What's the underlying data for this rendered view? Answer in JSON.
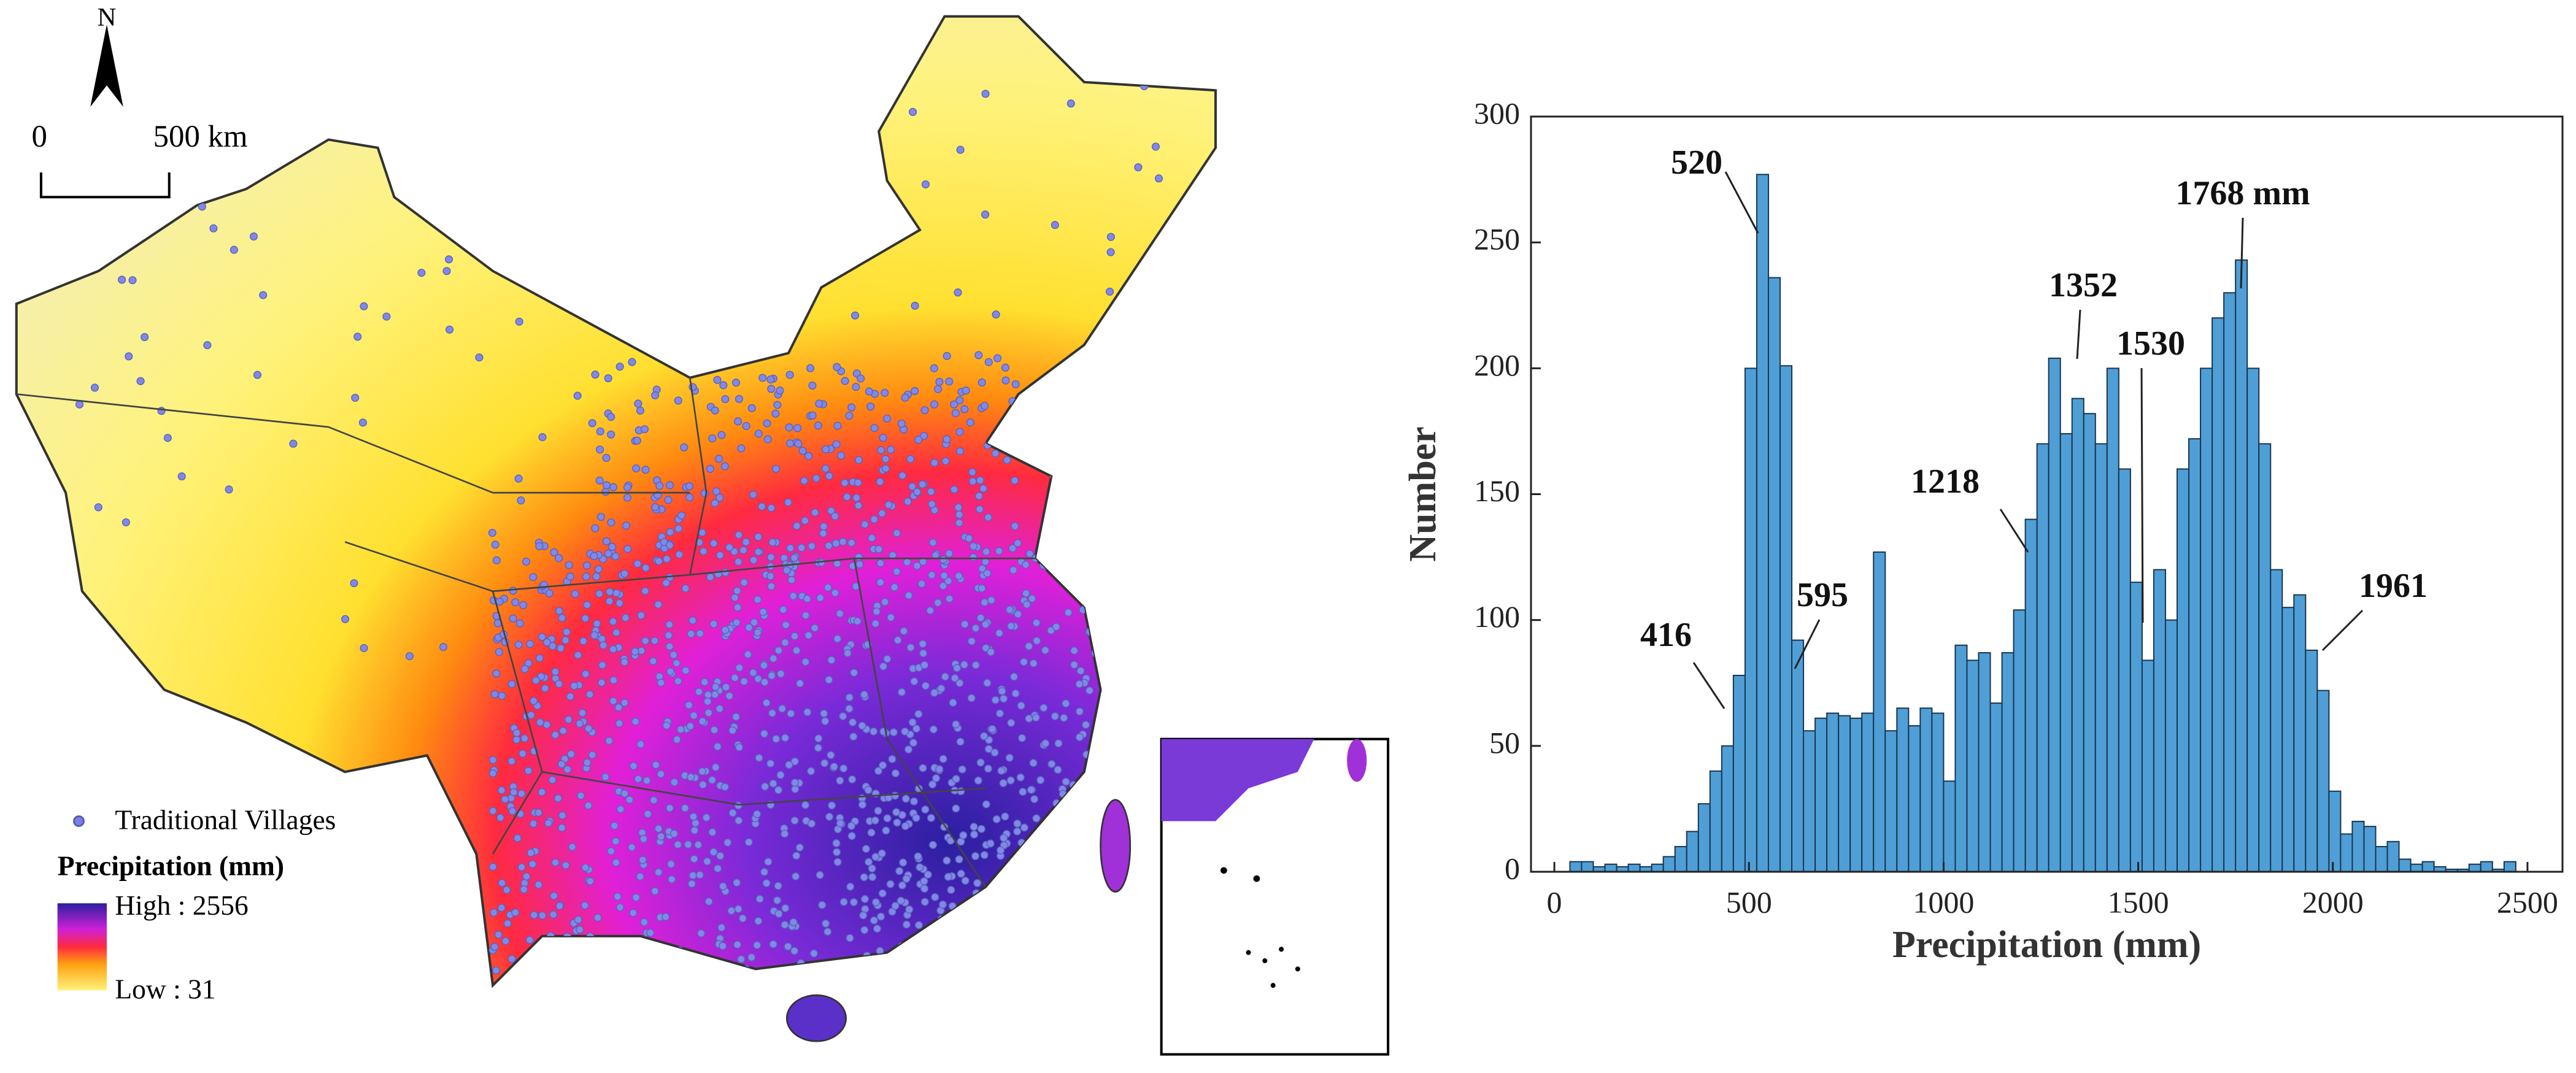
{
  "map": {
    "north": "N",
    "scale_start": "0",
    "scale_end": "500 km",
    "points_legend": "Traditional Villages",
    "legend_title": "Precipitation (mm)",
    "legend_high": "High : 2556",
    "legend_low": "Low : 31"
  },
  "chart_data": {
    "type": "histogram",
    "color": "#4f9fd6",
    "xlabel": "Precipitation (mm)",
    "ylabel": "Number",
    "bins": [
      40,
      70,
      100,
      130,
      160,
      190,
      220,
      250,
      280,
      310,
      340,
      370,
      400,
      430,
      460,
      490,
      520,
      550,
      580,
      610,
      640,
      670,
      700,
      730,
      760,
      790,
      820,
      850,
      880,
      910,
      940,
      970,
      1000,
      1030,
      1060,
      1090,
      1120,
      1150,
      1180,
      1210,
      1240,
      1270,
      1300,
      1330,
      1360,
      1390,
      1420,
      1450,
      1480,
      1510,
      1540,
      1570,
      1600,
      1630,
      1660,
      1690,
      1720,
      1750,
      1780,
      1810,
      1840,
      1870,
      1900,
      1930,
      1960,
      1990,
      2020,
      2050,
      2080,
      2110,
      2140,
      2170,
      2200,
      2230,
      2260,
      2290,
      2320,
      2350,
      2380,
      2410,
      2440,
      2470,
      2500
    ],
    "values": [
      4,
      4,
      2,
      3,
      2,
      3,
      2,
      3,
      6,
      10,
      16,
      27,
      40,
      50,
      78,
      200,
      277,
      236,
      201,
      92,
      56,
      61,
      63,
      62,
      61,
      63,
      127,
      56,
      65,
      58,
      65,
      63,
      36,
      90,
      84,
      87,
      67,
      87,
      104,
      140,
      170,
      204,
      174,
      188,
      182,
      170,
      200,
      160,
      115,
      84,
      120,
      100,
      160,
      172,
      200,
      220,
      230,
      243,
      200,
      170,
      120,
      105,
      110,
      88,
      72,
      32,
      15,
      20,
      18,
      10,
      12,
      5,
      3,
      4,
      2,
      1,
      1,
      3,
      4,
      1,
      4,
      0
    ],
    "xlim": [
      -60,
      2590
    ],
    "ylim": [
      0,
      300
    ],
    "xticks": [
      0,
      500,
      1000,
      1500,
      2000,
      2500
    ],
    "yticks": [
      0,
      50,
      100,
      150,
      200,
      250,
      300
    ],
    "annotations": [
      "520",
      "416",
      "595",
      "1218",
      "1352",
      "1530",
      "1768 mm",
      "1961"
    ]
  }
}
